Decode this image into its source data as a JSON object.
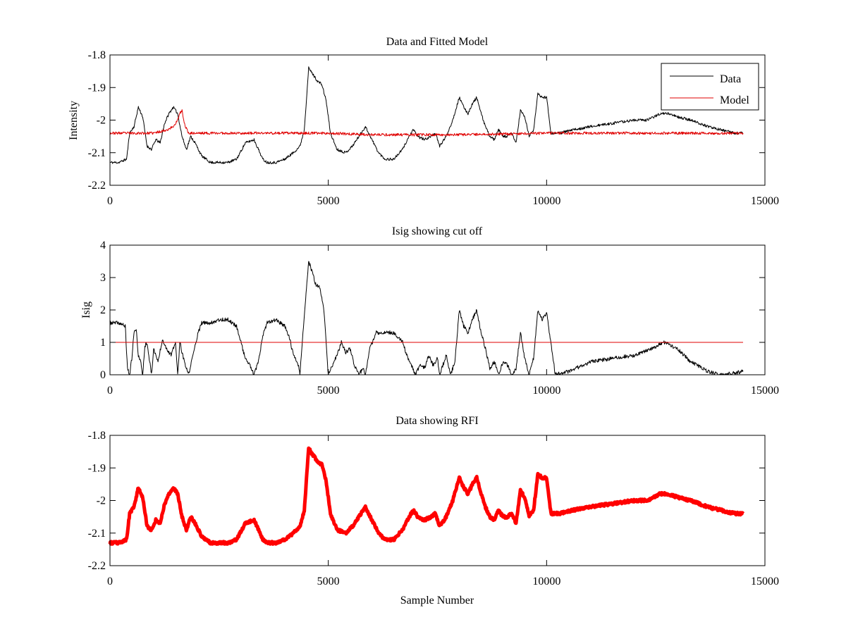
{
  "figure": {
    "xlabel": "Sample Number",
    "colors": {
      "data": "#000000",
      "model": "#e00000",
      "rfi": "#ff0000",
      "cutoff": "#e00000"
    }
  },
  "chart_data": [
    {
      "type": "line",
      "title": "Data and Fitted Model",
      "xlabel": "",
      "ylabel": "Intensity",
      "xlim": [
        0,
        15000
      ],
      "ylim": [
        -2.2,
        -1.8
      ],
      "x_ticks": [
        0,
        5000,
        10000,
        15000
      ],
      "y_ticks": [
        -2.2,
        -2.1,
        -2,
        -1.9,
        -1.8
      ],
      "x_tick_labels": [
        "0",
        "5000",
        "10000",
        "15000"
      ],
      "y_tick_labels": [
        "-2.2",
        "-2.1",
        "-2",
        "-1.9",
        "-1.8"
      ],
      "grid": false,
      "legend": "top-right",
      "noise": 0.004,
      "series": [
        {
          "name": "Data",
          "color": "#000000",
          "x": [
            0,
            200,
            380,
            450,
            550,
            650,
            750,
            850,
            950,
            1050,
            1150,
            1250,
            1350,
            1450,
            1550,
            1650,
            1750,
            1850,
            1950,
            2100,
            2300,
            2500,
            2700,
            2900,
            3100,
            3300,
            3400,
            3500,
            3600,
            3800,
            4000,
            4200,
            4350,
            4450,
            4550,
            4650,
            4750,
            4850,
            4950,
            5050,
            5200,
            5400,
            5550,
            5700,
            5850,
            6000,
            6150,
            6300,
            6500,
            6700,
            6850,
            6950,
            7050,
            7200,
            7350,
            7450,
            7550,
            7700,
            7850,
            8000,
            8100,
            8200,
            8300,
            8400,
            8500,
            8600,
            8700,
            8800,
            8900,
            9000,
            9100,
            9200,
            9300,
            9400,
            9500,
            9600,
            9700,
            9800,
            9900,
            10000,
            10100,
            10300,
            10600,
            11000,
            11500,
            12000,
            12300,
            12600,
            12800,
            13000,
            13300,
            13700,
            14000,
            14300,
            14500
          ],
          "y": [
            -2.13,
            -2.13,
            -2.12,
            -2.04,
            -2.02,
            -1.96,
            -1.99,
            -2.08,
            -2.09,
            -2.06,
            -2.07,
            -2.01,
            -1.98,
            -1.96,
            -1.98,
            -2.05,
            -2.09,
            -2.05,
            -2.07,
            -2.11,
            -2.13,
            -2.13,
            -2.13,
            -2.12,
            -2.07,
            -2.06,
            -2.09,
            -2.12,
            -2.13,
            -2.13,
            -2.12,
            -2.1,
            -2.08,
            -2.03,
            -1.84,
            -1.86,
            -1.88,
            -1.89,
            -1.94,
            -2.04,
            -2.09,
            -2.1,
            -2.08,
            -2.05,
            -2.02,
            -2.06,
            -2.1,
            -2.12,
            -2.12,
            -2.09,
            -2.05,
            -2.03,
            -2.05,
            -2.06,
            -2.05,
            -2.04,
            -2.08,
            -2.05,
            -2.0,
            -1.93,
            -1.96,
            -1.98,
            -1.95,
            -1.93,
            -1.98,
            -2.02,
            -2.05,
            -2.06,
            -2.03,
            -2.05,
            -2.05,
            -2.04,
            -2.07,
            -1.97,
            -1.99,
            -2.05,
            -2.03,
            -1.92,
            -1.93,
            -1.93,
            -2.04,
            -2.04,
            -2.03,
            -2.02,
            -2.01,
            -2.0,
            -2.0,
            -1.98,
            -1.98,
            -1.99,
            -2.0,
            -2.02,
            -2.03,
            -2.04,
            -2.04
          ]
        },
        {
          "name": "Model",
          "color": "#e00000",
          "x": [
            0,
            1000,
            1300,
            1450,
            1550,
            1600,
            1650,
            1700,
            1800,
            2500,
            5000,
            6000,
            8000,
            10000,
            12000,
            14500
          ],
          "y": [
            -2.04,
            -2.04,
            -2.03,
            -2.02,
            -2.0,
            -1.98,
            -1.97,
            -2.01,
            -2.04,
            -2.04,
            -2.04,
            -2.045,
            -2.045,
            -2.04,
            -2.04,
            -2.04
          ]
        }
      ]
    },
    {
      "type": "line",
      "title": "Isig showing cut off",
      "xlabel": "",
      "ylabel": "Isig",
      "xlim": [
        0,
        15000
      ],
      "ylim": [
        0,
        4
      ],
      "x_ticks": [
        0,
        5000,
        10000,
        15000
      ],
      "y_ticks": [
        0,
        1,
        2,
        3,
        4
      ],
      "x_tick_labels": [
        "0",
        "5000",
        "10000",
        "15000"
      ],
      "y_tick_labels": [
        "0",
        "1",
        "2",
        "3",
        "4"
      ],
      "grid": false,
      "legend": "none",
      "noise": 0.06,
      "series": [
        {
          "color": "#000000",
          "x": [
            0,
            200,
            350,
            400,
            450,
            500,
            550,
            600,
            650,
            700,
            750,
            800,
            850,
            900,
            950,
            1000,
            1100,
            1200,
            1300,
            1400,
            1500,
            1550,
            1600,
            1700,
            1800,
            1900,
            2000,
            2100,
            2200,
            2300,
            2500,
            2700,
            2900,
            3000,
            3100,
            3200,
            3300,
            3400,
            3500,
            3600,
            3800,
            4000,
            4100,
            4200,
            4300,
            4350,
            4450,
            4550,
            4650,
            4700,
            4800,
            4900,
            5000,
            5100,
            5200,
            5300,
            5400,
            5500,
            5600,
            5700,
            5800,
            5850,
            5950,
            6100,
            6300,
            6500,
            6700,
            6800,
            6900,
            7000,
            7100,
            7200,
            7300,
            7400,
            7500,
            7550,
            7700,
            7800,
            7900,
            8000,
            8100,
            8200,
            8300,
            8400,
            8500,
            8600,
            8700,
            8800,
            8900,
            9000,
            9100,
            9200,
            9300,
            9400,
            9500,
            9600,
            9700,
            9800,
            9900,
            10000,
            10200,
            10500,
            11000,
            11500,
            12000,
            12200,
            12400,
            12700,
            13000,
            13300,
            13700,
            14000,
            14500
          ],
          "y": [
            1.6,
            1.6,
            1.5,
            0.2,
            0.0,
            0.5,
            1.3,
            1.4,
            0.6,
            0.4,
            0.0,
            0.9,
            1.0,
            0.5,
            0.0,
            0.8,
            0.4,
            1.1,
            0.8,
            0.6,
            1.0,
            0.0,
            1.0,
            0.4,
            0.0,
            0.6,
            1.2,
            1.6,
            1.6,
            1.6,
            1.7,
            1.7,
            1.5,
            1.0,
            0.5,
            0.3,
            0.0,
            0.4,
            1.2,
            1.6,
            1.7,
            1.5,
            1.2,
            0.6,
            0.4,
            0.0,
            1.8,
            3.5,
            3.1,
            2.8,
            2.7,
            2.0,
            0.0,
            0.3,
            0.6,
            1.0,
            0.7,
            0.8,
            0.3,
            0.0,
            0.2,
            0.0,
            0.8,
            1.3,
            1.3,
            1.3,
            1.0,
            0.6,
            0.3,
            0.0,
            0.3,
            0.2,
            0.6,
            0.3,
            0.5,
            0.0,
            0.6,
            0.0,
            0.4,
            2.0,
            1.5,
            1.3,
            1.7,
            2.0,
            1.3,
            0.8,
            0.2,
            0.4,
            0.0,
            0.4,
            0.3,
            0.0,
            0.2,
            1.3,
            0.5,
            0.0,
            0.5,
            2.0,
            1.7,
            1.9,
            0.0,
            0.1,
            0.4,
            0.5,
            0.6,
            0.7,
            0.8,
            1.0,
            0.8,
            0.4,
            0.1,
            0.0,
            0.1
          ]
        },
        {
          "color": "#e00000",
          "x": [
            0,
            14500
          ],
          "y": [
            1,
            1
          ]
        }
      ]
    },
    {
      "type": "line",
      "title": "Data showing RFI",
      "xlabel": "Sample Number",
      "ylabel": "",
      "xlim": [
        0,
        15000
      ],
      "ylim": [
        -2.2,
        -1.8
      ],
      "x_ticks": [
        0,
        5000,
        10000,
        15000
      ],
      "y_ticks": [
        -2.2,
        -2.1,
        -2,
        -1.9,
        -1.8
      ],
      "x_tick_labels": [
        "0",
        "5000",
        "10000",
        "15000"
      ],
      "y_tick_labels": [
        "-2.2",
        "-2.1",
        "-2",
        "-1.9",
        "-1.8"
      ],
      "grid": false,
      "legend": "none",
      "noise": 0.004,
      "series": [
        {
          "color": "#ff0000",
          "x": [
            0,
            200,
            380,
            450,
            550,
            650,
            750,
            850,
            950,
            1050,
            1150,
            1250,
            1350,
            1450,
            1550,
            1650,
            1750,
            1850,
            1950,
            2100,
            2300,
            2500,
            2700,
            2900,
            3100,
            3300,
            3400,
            3500,
            3600,
            3800,
            4000,
            4200,
            4350,
            4450,
            4550,
            4650,
            4750,
            4850,
            4950,
            5050,
            5200,
            5400,
            5550,
            5700,
            5850,
            6000,
            6150,
            6300,
            6500,
            6700,
            6850,
            6950,
            7050,
            7200,
            7350,
            7450,
            7550,
            7700,
            7850,
            8000,
            8100,
            8200,
            8300,
            8400,
            8500,
            8600,
            8700,
            8800,
            8900,
            9000,
            9100,
            9200,
            9300,
            9400,
            9500,
            9600,
            9700,
            9800,
            9900,
            10000,
            10100,
            10300,
            10600,
            11000,
            11500,
            12000,
            12300,
            12600,
            12800,
            13000,
            13300,
            13700,
            14000,
            14300,
            14500
          ],
          "y": [
            -2.13,
            -2.13,
            -2.12,
            -2.04,
            -2.02,
            -1.96,
            -1.99,
            -2.08,
            -2.09,
            -2.06,
            -2.07,
            -2.01,
            -1.98,
            -1.96,
            -1.98,
            -2.05,
            -2.09,
            -2.05,
            -2.07,
            -2.11,
            -2.13,
            -2.13,
            -2.13,
            -2.12,
            -2.07,
            -2.06,
            -2.09,
            -2.12,
            -2.13,
            -2.13,
            -2.12,
            -2.1,
            -2.08,
            -2.03,
            -1.84,
            -1.86,
            -1.88,
            -1.89,
            -1.94,
            -2.04,
            -2.09,
            -2.1,
            -2.08,
            -2.05,
            -2.02,
            -2.06,
            -2.1,
            -2.12,
            -2.12,
            -2.09,
            -2.05,
            -2.03,
            -2.05,
            -2.06,
            -2.05,
            -2.04,
            -2.08,
            -2.05,
            -2.0,
            -1.93,
            -1.96,
            -1.98,
            -1.95,
            -1.93,
            -1.98,
            -2.02,
            -2.05,
            -2.06,
            -2.03,
            -2.05,
            -2.05,
            -2.04,
            -2.07,
            -1.97,
            -1.99,
            -2.05,
            -2.03,
            -1.92,
            -1.93,
            -1.93,
            -2.04,
            -2.04,
            -2.03,
            -2.02,
            -2.01,
            -2.0,
            -2.0,
            -1.98,
            -1.98,
            -1.99,
            -2.0,
            -2.02,
            -2.03,
            -2.04,
            -2.04
          ]
        }
      ]
    }
  ]
}
